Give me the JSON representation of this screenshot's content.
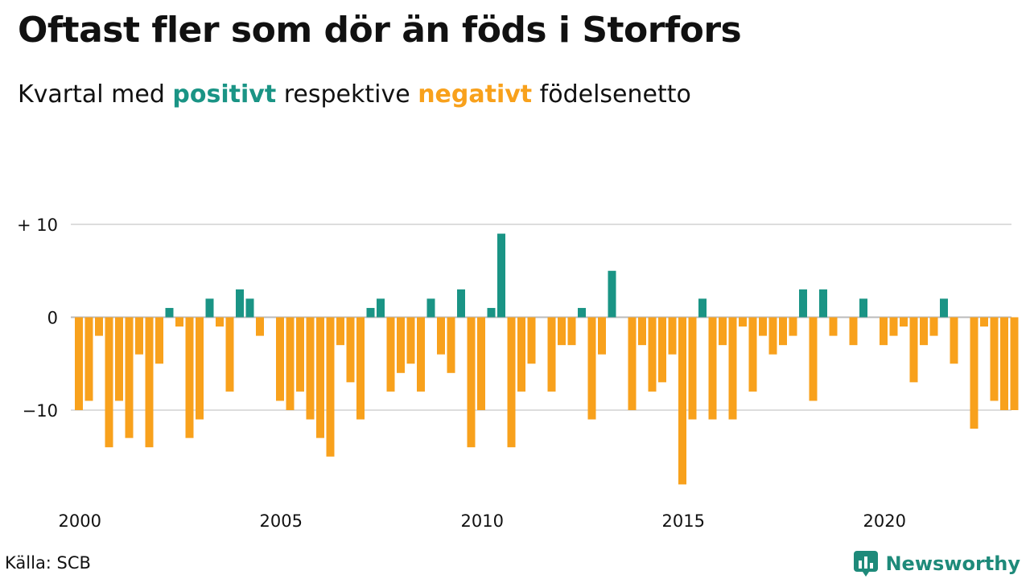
{
  "header": {
    "title": "Oftast fler som dör än föds i Storfors",
    "subtitle_prefix": "Kvartal med ",
    "subtitle_positive": "positivt",
    "subtitle_middle": " respektive ",
    "subtitle_negative": "negativt",
    "subtitle_suffix": " födelsenetto"
  },
  "footer": {
    "source": "Källa: SCB",
    "brand": "Newsworthy"
  },
  "colors": {
    "positive": "#1a9485",
    "negative": "#f8a11c",
    "grid": "#dddddd",
    "brand": "#1e8a7a"
  },
  "icons": {
    "brand_logo": "newsworthy-chart-bubble-icon"
  },
  "chart_data": {
    "type": "bar",
    "ylim": [
      -20,
      12
    ],
    "y_ticks": [
      {
        "value": 10,
        "label": "+ 10"
      },
      {
        "value": 0,
        "label": "0"
      },
      {
        "value": -10,
        "label": "−10"
      }
    ],
    "x_ticks": [
      {
        "value": 2000,
        "label": "2000"
      },
      {
        "value": 2005,
        "label": "2005"
      },
      {
        "value": 2010,
        "label": "2010"
      },
      {
        "value": 2015,
        "label": "2015"
      },
      {
        "value": 2020,
        "label": "2020"
      }
    ],
    "grid": true,
    "start_year": 2000,
    "periods_per_year": 4,
    "values": [
      -10,
      -9,
      -2,
      -14,
      -9,
      -13,
      -4,
      -14,
      -5,
      1,
      -1,
      -13,
      -11,
      2,
      -1,
      -8,
      3,
      2,
      -2,
      0,
      -9,
      -10,
      -8,
      -11,
      -13,
      -15,
      -3,
      -7,
      -11,
      1,
      2,
      -8,
      -6,
      -5,
      -8,
      2,
      -4,
      -6,
      3,
      -14,
      -10,
      1,
      9,
      -14,
      -8,
      -5,
      0,
      -8,
      -3,
      -3,
      1,
      -11,
      -4,
      5,
      0,
      -10,
      -3,
      -8,
      -7,
      -4,
      -18,
      -11,
      2,
      -11,
      -3,
      -11,
      -1,
      -8,
      -2,
      -4,
      -3,
      -2,
      3,
      -9,
      3,
      -2,
      0,
      -3,
      2,
      0,
      -3,
      -2,
      -1,
      -7,
      -3,
      -2,
      2,
      -5,
      0,
      -12,
      -1,
      -9,
      -10,
      -10
    ]
  }
}
